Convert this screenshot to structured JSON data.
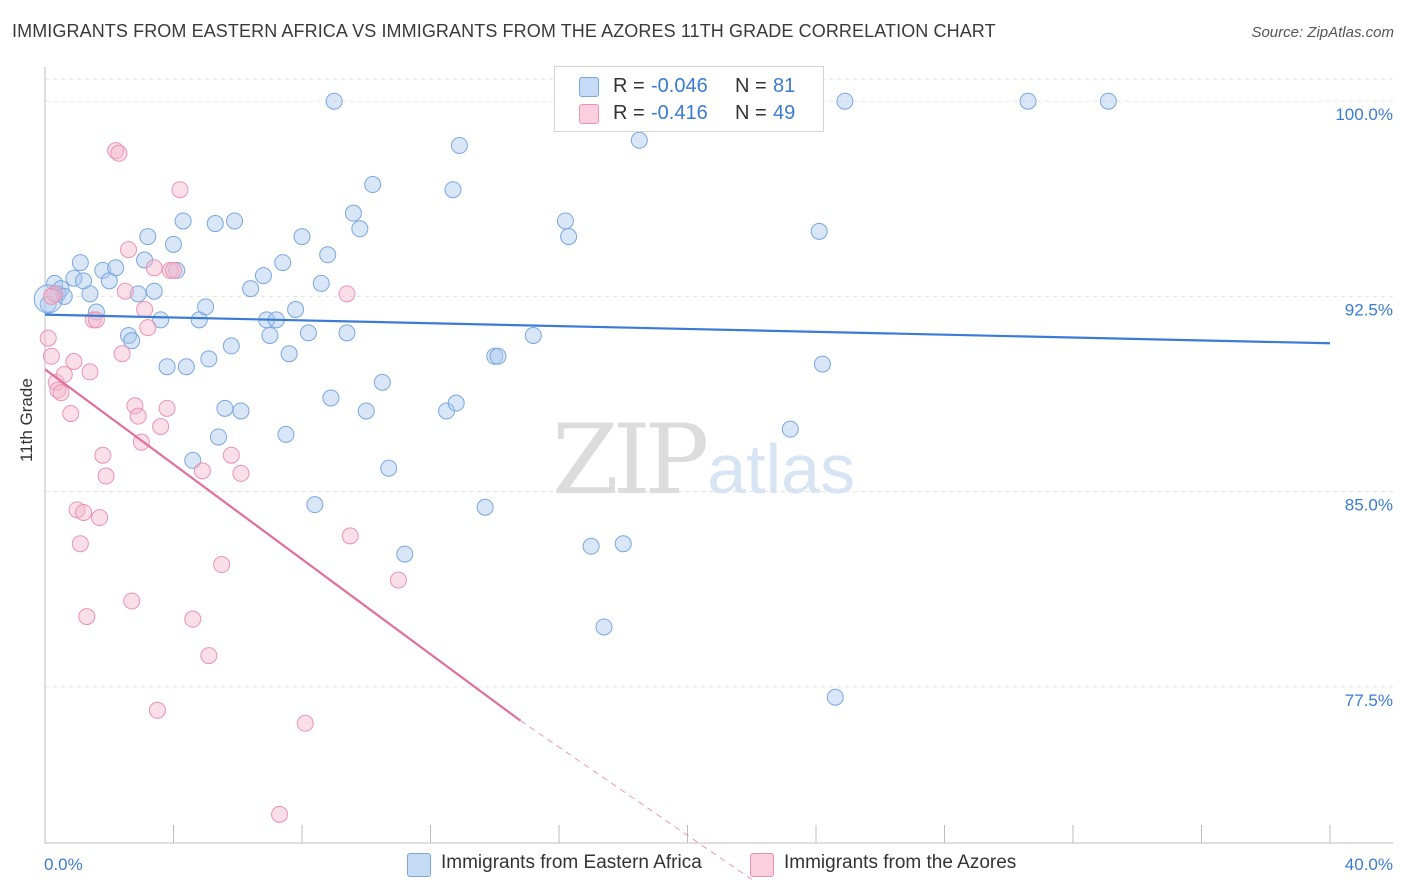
{
  "header": {
    "title": "IMMIGRANTS FROM EASTERN AFRICA VS IMMIGRANTS FROM THE AZORES 11TH GRADE CORRELATION CHART",
    "source": "Source: ZipAtlas.com"
  },
  "watermark": {
    "zip": "ZIP",
    "atlas": "atlas"
  },
  "legend": {
    "rows": [
      {
        "r_label": "R =",
        "r_value": "-0.046",
        "n_label": "N =",
        "n_value": "81",
        "color": "#a8c8f0"
      },
      {
        "r_label": "R =",
        "r_value": "-0.416",
        "n_label": "N =",
        "n_value": "49",
        "color": "#f5b8cc"
      }
    ]
  },
  "bottom_legend": {
    "series1": "Immigrants from Eastern Africa",
    "series2": "Immigrants from the Azores"
  },
  "chart_data": {
    "type": "scatter",
    "title": "IMMIGRANTS FROM EASTERN AFRICA VS IMMIGRANTS FROM THE AZORES 11TH GRADE CORRELATION CHART",
    "xlabel": "",
    "ylabel": "11th Grade",
    "xlim": [
      0,
      40
    ],
    "ylim": [
      71.5,
      101.2
    ],
    "x_tick_labels": [
      "0.0%",
      "40.0%"
    ],
    "y_ticks": [
      77.5,
      85.0,
      92.5,
      100.0
    ],
    "y_tick_labels": [
      "77.5%",
      "85.0%",
      "92.5%",
      "100.0%"
    ],
    "grid": true,
    "legend_position": "top-center",
    "colors": {
      "blue": "#3a7bd5",
      "pink": "#e0709a",
      "blue_fill": "#a8c8f0",
      "pink_fill": "#f5b8cc"
    },
    "series": [
      {
        "name": "Immigrants from Eastern Africa",
        "color": "#3a7bd5",
        "trend": {
          "x": [
            0,
            40
          ],
          "y": [
            91.8,
            90.7
          ]
        },
        "points": [
          [
            0.1,
            92.2
          ],
          [
            0.3,
            93.0
          ],
          [
            0.4,
            92.6
          ],
          [
            0.5,
            92.8
          ],
          [
            0.6,
            92.5
          ],
          [
            0.9,
            93.2
          ],
          [
            1.1,
            93.8
          ],
          [
            1.2,
            93.1
          ],
          [
            1.4,
            92.6
          ],
          [
            1.6,
            91.9
          ],
          [
            1.8,
            93.5
          ],
          [
            2.2,
            93.6
          ],
          [
            2.6,
            91.0
          ],
          [
            2.7,
            90.8
          ],
          [
            2.9,
            92.6
          ],
          [
            3.1,
            93.9
          ],
          [
            3.2,
            94.8
          ],
          [
            3.4,
            92.7
          ],
          [
            3.6,
            91.6
          ],
          [
            3.8,
            89.8
          ],
          [
            4.0,
            94.5
          ],
          [
            4.1,
            93.5
          ],
          [
            4.3,
            95.4
          ],
          [
            4.4,
            89.8
          ],
          [
            4.6,
            86.2
          ],
          [
            4.8,
            91.6
          ],
          [
            5.0,
            92.1
          ],
          [
            5.1,
            90.1
          ],
          [
            5.3,
            95.3
          ],
          [
            5.4,
            87.1
          ],
          [
            5.6,
            88.2
          ],
          [
            5.8,
            90.6
          ],
          [
            5.9,
            95.4
          ],
          [
            6.1,
            88.1
          ],
          [
            6.4,
            92.8
          ],
          [
            6.8,
            93.3
          ],
          [
            6.9,
            91.6
          ],
          [
            7.0,
            91.0
          ],
          [
            7.2,
            91.6
          ],
          [
            7.4,
            93.8
          ],
          [
            7.5,
            87.2
          ],
          [
            7.6,
            90.3
          ],
          [
            7.8,
            92.0
          ],
          [
            8.0,
            94.8
          ],
          [
            8.2,
            91.1
          ],
          [
            8.4,
            84.5
          ],
          [
            8.6,
            93.0
          ],
          [
            8.8,
            94.1
          ],
          [
            8.9,
            88.6
          ],
          [
            9.0,
            100.0
          ],
          [
            9.4,
            91.1
          ],
          [
            9.6,
            95.7
          ],
          [
            9.8,
            95.1
          ],
          [
            10.0,
            88.1
          ],
          [
            10.2,
            96.8
          ],
          [
            10.5,
            89.2
          ],
          [
            10.7,
            85.9
          ],
          [
            11.2,
            82.6
          ],
          [
            12.5,
            88.1
          ],
          [
            12.7,
            96.6
          ],
          [
            12.8,
            88.4
          ],
          [
            12.9,
            98.3
          ],
          [
            13.7,
            84.4
          ],
          [
            14.0,
            90.2
          ],
          [
            14.1,
            90.2
          ],
          [
            15.2,
            91.0
          ],
          [
            16.2,
            95.4
          ],
          [
            16.3,
            94.8
          ],
          [
            17.0,
            82.9
          ],
          [
            17.2,
            100.0
          ],
          [
            17.4,
            79.8
          ],
          [
            18.0,
            83.0
          ],
          [
            18.5,
            98.5
          ],
          [
            23.2,
            87.4
          ],
          [
            24.1,
            95.0
          ],
          [
            24.2,
            89.9
          ],
          [
            24.6,
            77.1
          ],
          [
            24.9,
            100.0
          ],
          [
            30.6,
            100.0
          ],
          [
            33.1,
            100.0
          ],
          [
            2.0,
            93.1
          ]
        ]
      },
      {
        "name": "Immigrants from the Azores",
        "color": "#e0709a",
        "trend": {
          "x": [
            0,
            14.8
          ],
          "y": [
            89.7,
            76.2
          ],
          "dash_x": [
            14.8,
            22.0
          ],
          "dash_y": [
            76.2,
            70.1
          ]
        },
        "points": [
          [
            0.1,
            90.9
          ],
          [
            0.2,
            90.2
          ],
          [
            0.3,
            92.6
          ],
          [
            0.35,
            89.2
          ],
          [
            0.4,
            88.9
          ],
          [
            0.5,
            88.8
          ],
          [
            0.6,
            89.5
          ],
          [
            0.8,
            88.0
          ],
          [
            0.9,
            90.0
          ],
          [
            1.0,
            84.3
          ],
          [
            1.1,
            83.0
          ],
          [
            1.2,
            84.2
          ],
          [
            1.3,
            80.2
          ],
          [
            1.4,
            89.6
          ],
          [
            1.5,
            91.6
          ],
          [
            1.6,
            91.6
          ],
          [
            1.7,
            84.0
          ],
          [
            1.8,
            86.4
          ],
          [
            1.9,
            85.6
          ],
          [
            2.2,
            98.1
          ],
          [
            2.3,
            98.0
          ],
          [
            2.4,
            90.3
          ],
          [
            2.5,
            92.7
          ],
          [
            2.6,
            94.3
          ],
          [
            2.7,
            80.8
          ],
          [
            2.8,
            88.3
          ],
          [
            2.9,
            87.9
          ],
          [
            3.0,
            86.9
          ],
          [
            3.1,
            92.0
          ],
          [
            3.2,
            91.3
          ],
          [
            3.4,
            93.6
          ],
          [
            3.5,
            76.6
          ],
          [
            3.6,
            87.5
          ],
          [
            3.8,
            88.2
          ],
          [
            3.9,
            93.5
          ],
          [
            4.0,
            93.5
          ],
          [
            4.2,
            96.6
          ],
          [
            4.6,
            80.1
          ],
          [
            4.9,
            85.8
          ],
          [
            5.1,
            78.7
          ],
          [
            5.5,
            82.2
          ],
          [
            5.8,
            86.4
          ],
          [
            6.1,
            85.7
          ],
          [
            7.3,
            72.6
          ],
          [
            8.1,
            76.1
          ],
          [
            9.4,
            92.6
          ],
          [
            9.5,
            83.3
          ],
          [
            11.0,
            81.6
          ],
          [
            0.2,
            92.5
          ]
        ]
      }
    ]
  }
}
